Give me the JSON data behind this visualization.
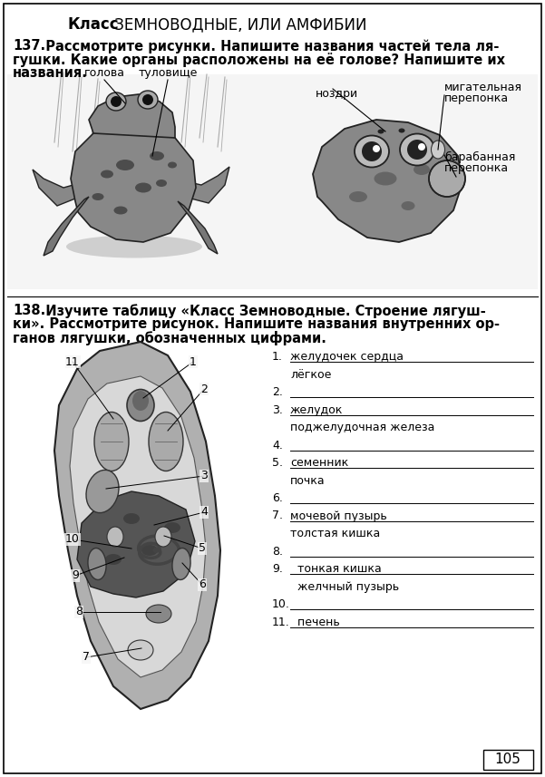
{
  "page_number": "105",
  "bg": "#ffffff",
  "title_bold": "Класс",
  "title_normal": " ЗЕМНОВОДНЫЕ, ИЛИ АМФИБИИ",
  "t137_num": "137.",
  "t137_l1": "  Рассмотрите рисунки. Напишите названия частей тела ля-",
  "t137_l2": "гушки. Какие органы расположены на её голове? Напишите их",
  "t137_l3": "названия.",
  "label_golova": "голова",
  "label_tulov": "туловище",
  "label_nozdri": "ноздри",
  "label_mig1": "мигательная",
  "label_mig2": "перепонка",
  "label_bar1": "барабанная",
  "label_bar2": "перепонка",
  "t138_num": "138.",
  "t138_l1": "  Изучите таблицу «Класс Земноводные. Строение лягуш-",
  "t138_l2": "ки». Рассмотрите рисунок. Напишите названия внутренних ор-",
  "t138_l3": "ганов лягушки, обозначенных цифрами.",
  "items": [
    [
      "1.",
      "желудочек сердца",
      true
    ],
    [
      "",
      "лёгкое",
      false
    ],
    [
      "2.",
      "",
      true
    ],
    [
      "3.",
      "желудок",
      true
    ],
    [
      "",
      "поджелудочная железа",
      false
    ],
    [
      "4.",
      "",
      true
    ],
    [
      "5.",
      "семенник",
      true
    ],
    [
      "",
      "почка",
      false
    ],
    [
      "6.",
      "",
      true
    ],
    [
      "7.",
      "мочевой пузырь",
      true
    ],
    [
      "",
      "толстая кишка",
      false
    ],
    [
      "8.",
      "",
      true
    ],
    [
      "9.",
      "  тонкая кишка",
      true
    ],
    [
      "",
      "  желчный пузырь",
      false
    ],
    [
      "10.",
      "",
      true
    ],
    [
      "11.",
      "  печень",
      true
    ]
  ],
  "fs_title": 12,
  "fs_body": 10.5,
  "fs_label": 9,
  "fs_num": 9,
  "fs_page": 11
}
